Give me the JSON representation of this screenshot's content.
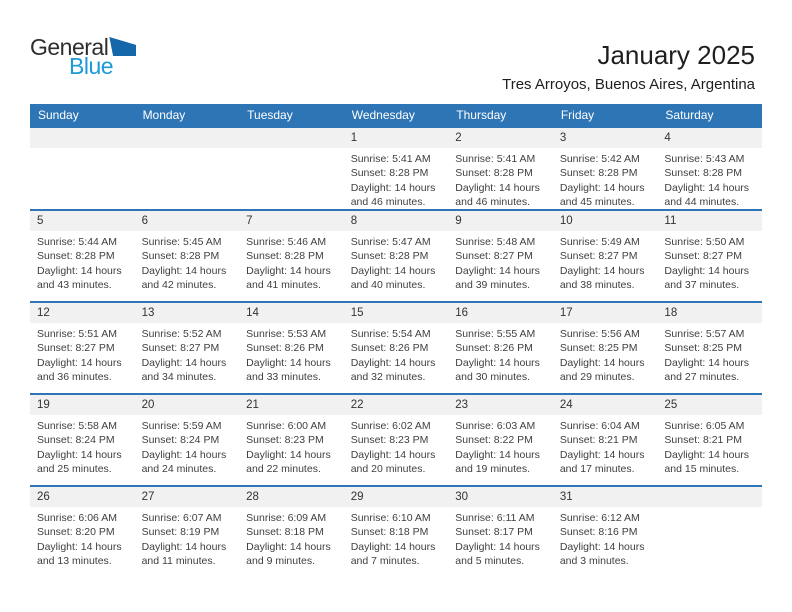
{
  "logo": {
    "text_top": "General",
    "text_bottom": "Blue",
    "triangle_icon": "blue-right-triangle"
  },
  "header": {
    "title": "January 2025",
    "subtitle": "Tres Arroyos, Buenos Aires, Argentina"
  },
  "colors": {
    "header_blue": "#2E75B6",
    "separator_blue": "#2E75B6",
    "band_gray": "#F1F1F1",
    "logo_blue": "#1C9AD7",
    "logo_triangle": "#1467A8",
    "text_dark": "#1F1F1F",
    "detail_text": "#3F3F3F"
  },
  "weekday_headers": [
    "Sunday",
    "Monday",
    "Tuesday",
    "Wednesday",
    "Thursday",
    "Friday",
    "Saturday"
  ],
  "weeks": [
    [
      null,
      null,
      null,
      {
        "day": "1",
        "lines": [
          "Sunrise: 5:41 AM",
          "Sunset: 8:28 PM",
          "Daylight: 14 hours",
          "and 46 minutes."
        ]
      },
      {
        "day": "2",
        "lines": [
          "Sunrise: 5:41 AM",
          "Sunset: 8:28 PM",
          "Daylight: 14 hours",
          "and 46 minutes."
        ]
      },
      {
        "day": "3",
        "lines": [
          "Sunrise: 5:42 AM",
          "Sunset: 8:28 PM",
          "Daylight: 14 hours",
          "and 45 minutes."
        ]
      },
      {
        "day": "4",
        "lines": [
          "Sunrise: 5:43 AM",
          "Sunset: 8:28 PM",
          "Daylight: 14 hours",
          "and 44 minutes."
        ]
      }
    ],
    [
      {
        "day": "5",
        "lines": [
          "Sunrise: 5:44 AM",
          "Sunset: 8:28 PM",
          "Daylight: 14 hours",
          "and 43 minutes."
        ]
      },
      {
        "day": "6",
        "lines": [
          "Sunrise: 5:45 AM",
          "Sunset: 8:28 PM",
          "Daylight: 14 hours",
          "and 42 minutes."
        ]
      },
      {
        "day": "7",
        "lines": [
          "Sunrise: 5:46 AM",
          "Sunset: 8:28 PM",
          "Daylight: 14 hours",
          "and 41 minutes."
        ]
      },
      {
        "day": "8",
        "lines": [
          "Sunrise: 5:47 AM",
          "Sunset: 8:28 PM",
          "Daylight: 14 hours",
          "and 40 minutes."
        ]
      },
      {
        "day": "9",
        "lines": [
          "Sunrise: 5:48 AM",
          "Sunset: 8:27 PM",
          "Daylight: 14 hours",
          "and 39 minutes."
        ]
      },
      {
        "day": "10",
        "lines": [
          "Sunrise: 5:49 AM",
          "Sunset: 8:27 PM",
          "Daylight: 14 hours",
          "and 38 minutes."
        ]
      },
      {
        "day": "11",
        "lines": [
          "Sunrise: 5:50 AM",
          "Sunset: 8:27 PM",
          "Daylight: 14 hours",
          "and 37 minutes."
        ]
      }
    ],
    [
      {
        "day": "12",
        "lines": [
          "Sunrise: 5:51 AM",
          "Sunset: 8:27 PM",
          "Daylight: 14 hours",
          "and 36 minutes."
        ]
      },
      {
        "day": "13",
        "lines": [
          "Sunrise: 5:52 AM",
          "Sunset: 8:27 PM",
          "Daylight: 14 hours",
          "and 34 minutes."
        ]
      },
      {
        "day": "14",
        "lines": [
          "Sunrise: 5:53 AM",
          "Sunset: 8:26 PM",
          "Daylight: 14 hours",
          "and 33 minutes."
        ]
      },
      {
        "day": "15",
        "lines": [
          "Sunrise: 5:54 AM",
          "Sunset: 8:26 PM",
          "Daylight: 14 hours",
          "and 32 minutes."
        ]
      },
      {
        "day": "16",
        "lines": [
          "Sunrise: 5:55 AM",
          "Sunset: 8:26 PM",
          "Daylight: 14 hours",
          "and 30 minutes."
        ]
      },
      {
        "day": "17",
        "lines": [
          "Sunrise: 5:56 AM",
          "Sunset: 8:25 PM",
          "Daylight: 14 hours",
          "and 29 minutes."
        ]
      },
      {
        "day": "18",
        "lines": [
          "Sunrise: 5:57 AM",
          "Sunset: 8:25 PM",
          "Daylight: 14 hours",
          "and 27 minutes."
        ]
      }
    ],
    [
      {
        "day": "19",
        "lines": [
          "Sunrise: 5:58 AM",
          "Sunset: 8:24 PM",
          "Daylight: 14 hours",
          "and 25 minutes."
        ]
      },
      {
        "day": "20",
        "lines": [
          "Sunrise: 5:59 AM",
          "Sunset: 8:24 PM",
          "Daylight: 14 hours",
          "and 24 minutes."
        ]
      },
      {
        "day": "21",
        "lines": [
          "Sunrise: 6:00 AM",
          "Sunset: 8:23 PM",
          "Daylight: 14 hours",
          "and 22 minutes."
        ]
      },
      {
        "day": "22",
        "lines": [
          "Sunrise: 6:02 AM",
          "Sunset: 8:23 PM",
          "Daylight: 14 hours",
          "and 20 minutes."
        ]
      },
      {
        "day": "23",
        "lines": [
          "Sunrise: 6:03 AM",
          "Sunset: 8:22 PM",
          "Daylight: 14 hours",
          "and 19 minutes."
        ]
      },
      {
        "day": "24",
        "lines": [
          "Sunrise: 6:04 AM",
          "Sunset: 8:21 PM",
          "Daylight: 14 hours",
          "and 17 minutes."
        ]
      },
      {
        "day": "25",
        "lines": [
          "Sunrise: 6:05 AM",
          "Sunset: 8:21 PM",
          "Daylight: 14 hours",
          "and 15 minutes."
        ]
      }
    ],
    [
      {
        "day": "26",
        "lines": [
          "Sunrise: 6:06 AM",
          "Sunset: 8:20 PM",
          "Daylight: 14 hours",
          "and 13 minutes."
        ]
      },
      {
        "day": "27",
        "lines": [
          "Sunrise: 6:07 AM",
          "Sunset: 8:19 PM",
          "Daylight: 14 hours",
          "and 11 minutes."
        ]
      },
      {
        "day": "28",
        "lines": [
          "Sunrise: 6:09 AM",
          "Sunset: 8:18 PM",
          "Daylight: 14 hours",
          "and 9 minutes."
        ]
      },
      {
        "day": "29",
        "lines": [
          "Sunrise: 6:10 AM",
          "Sunset: 8:18 PM",
          "Daylight: 14 hours",
          "and 7 minutes."
        ]
      },
      {
        "day": "30",
        "lines": [
          "Sunrise: 6:11 AM",
          "Sunset: 8:17 PM",
          "Daylight: 14 hours",
          "and 5 minutes."
        ]
      },
      {
        "day": "31",
        "lines": [
          "Sunrise: 6:12 AM",
          "Sunset: 8:16 PM",
          "Daylight: 14 hours",
          "and 3 minutes."
        ]
      },
      null
    ]
  ]
}
